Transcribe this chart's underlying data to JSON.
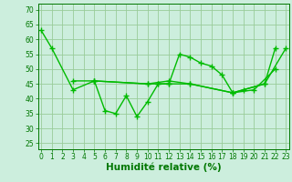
{
  "series": [
    {
      "x": [
        0,
        1,
        3,
        5,
        6,
        7,
        8,
        9,
        10,
        11,
        12,
        13,
        14,
        15,
        16,
        17,
        18,
        19,
        21,
        22
      ],
      "y": [
        63,
        57,
        43,
        46,
        36,
        35,
        41,
        34,
        39,
        45,
        45,
        55,
        54,
        52,
        51,
        48,
        42,
        43,
        45,
        57
      ]
    },
    {
      "x": [
        3,
        5,
        10,
        11,
        12,
        14,
        18,
        21,
        23
      ],
      "y": [
        46,
        46,
        45,
        45,
        45,
        45,
        42,
        45,
        57
      ]
    },
    {
      "x": [
        5,
        10,
        12,
        14,
        18,
        20,
        22
      ],
      "y": [
        46,
        45,
        46,
        45,
        42,
        43,
        50
      ]
    }
  ],
  "line_color": "#00bb00",
  "marker": "+",
  "markersize": 4,
  "markeredgewidth": 1.0,
  "linewidth": 1.0,
  "background_color": "#cceedd",
  "grid_color": "#99cc99",
  "xlabel": "Humidité relative (%)",
  "xlabel_fontsize": 7.5,
  "xlabel_color": "#007700",
  "yticks": [
    25,
    30,
    35,
    40,
    45,
    50,
    55,
    60,
    65,
    70
  ],
  "xticks": [
    0,
    1,
    2,
    3,
    4,
    5,
    6,
    7,
    8,
    9,
    10,
    11,
    12,
    13,
    14,
    15,
    16,
    17,
    18,
    19,
    20,
    21,
    22,
    23
  ],
  "ylim": [
    23,
    72
  ],
  "xlim": [
    -0.3,
    23.3
  ],
  "tick_fontsize": 5.5,
  "tick_color": "#007700"
}
